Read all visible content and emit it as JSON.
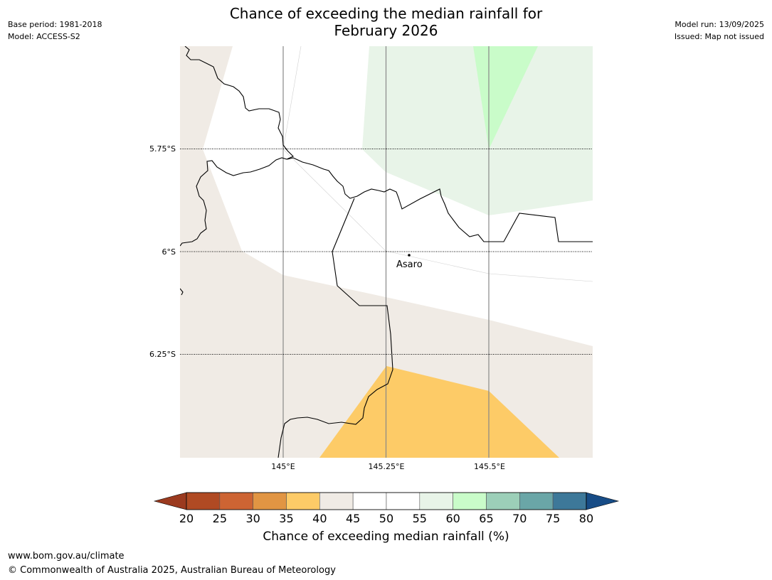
{
  "title": {
    "line1": "Chance of exceeding the median rainfall for",
    "line2": "February 2026"
  },
  "meta": {
    "base_period": "Base period: 1981-2018",
    "model": "Model: ACCESS-S2",
    "model_run": "Model run: 13/09/2025",
    "issued": "Issued: Map not issued"
  },
  "map": {
    "latitudes": [
      "5.75°S",
      "6°S",
      "6.25°S"
    ],
    "longitudes": [
      "145°E",
      "145.25°E",
      "145.5°E"
    ],
    "place": "Asaro",
    "colors": {
      "band_40_45": "#f0ebe5",
      "band_35_40": "#fdcb67",
      "band_55_60": "#e8f4e8",
      "band_60_65": "#c9fcc9",
      "band_45_55": "#ffffff"
    }
  },
  "colorbar": {
    "ticks": [
      "20",
      "25",
      "30",
      "35",
      "40",
      "45",
      "50",
      "55",
      "60",
      "65",
      "70",
      "75",
      "80"
    ],
    "colors": [
      "#9b3a1f",
      "#b04a23",
      "#cd6433",
      "#e19543",
      "#fdcb67",
      "#f0ebe5",
      "#ffffff",
      "#ffffff",
      "#e8f4e8",
      "#c9fcc9",
      "#9ccfb8",
      "#6aa6a7",
      "#3d7899",
      "#174c86"
    ],
    "label": "Chance of exceeding median rainfall (%)"
  },
  "footer": {
    "url": "www.bom.gov.au/climate",
    "copyright": "© Commonwealth of Australia 2025, Australian Bureau of Meteorology"
  }
}
